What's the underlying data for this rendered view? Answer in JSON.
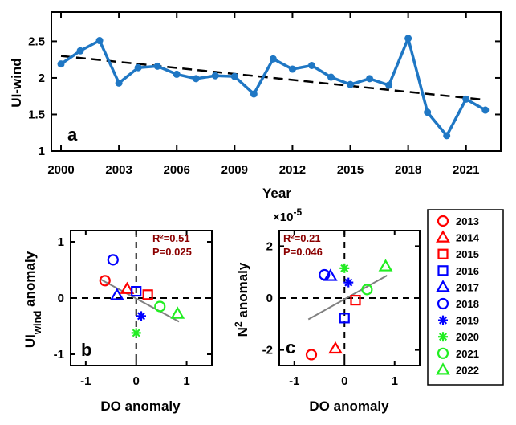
{
  "chart_data": [
    {
      "id": "a",
      "type": "line",
      "panel_label": "a",
      "xlabel": "Year",
      "ylabel": "UI-wind",
      "xlim": [
        1999.5,
        2022.8
      ],
      "ylim": [
        1,
        2.9
      ],
      "xticks": [
        2000,
        2003,
        2006,
        2009,
        2012,
        2015,
        2018,
        2021
      ],
      "xtick_labels": [
        "2000",
        "2003",
        "2006",
        "2009",
        "2012",
        "2015",
        "2018",
        "2021"
      ],
      "yticks": [
        1,
        1.5,
        2,
        2.5
      ],
      "ytick_labels": [
        "1",
        "1.5",
        "2",
        "2.5"
      ],
      "series": [
        {
          "name": "UI-wind",
          "color": "#1f77c4",
          "x": [
            2000,
            2001,
            2002,
            2003,
            2004,
            2005,
            2006,
            2007,
            2008,
            2009,
            2010,
            2011,
            2012,
            2013,
            2014,
            2015,
            2016,
            2017,
            2018,
            2019,
            2020,
            2021,
            2022
          ],
          "y": [
            2.19,
            2.37,
            2.51,
            1.93,
            2.14,
            2.16,
            2.05,
            1.99,
            2.03,
            2.02,
            1.78,
            2.26,
            2.12,
            2.17,
            2.01,
            1.91,
            1.99,
            1.9,
            2.54,
            1.53,
            1.21,
            1.71,
            1.56
          ]
        }
      ],
      "trend": {
        "name": "linear trend",
        "color": "#000000",
        "x": [
          2000,
          2022
        ],
        "y": [
          2.3,
          1.7
        ]
      }
    },
    {
      "id": "b",
      "type": "scatter",
      "panel_label": "b",
      "xlabel": "DO anomaly",
      "ylabel_main": "UI",
      "ylabel_sub": "wind",
      "ylabel_tail": " anomaly",
      "xlim": [
        -1.3,
        1.5
      ],
      "ylim": [
        -1.2,
        1.2
      ],
      "xticks": [
        -1,
        0,
        1
      ],
      "xtick_labels": [
        "-1",
        "0",
        "1"
      ],
      "yticks": [
        -1,
        0,
        1
      ],
      "ytick_labels": [
        "-1",
        "0",
        "1"
      ],
      "stats": [
        "R²=0.51",
        "P=0.025"
      ],
      "fit": {
        "x": [
          -0.7,
          0.85
        ],
        "y": [
          0.33,
          -0.42
        ]
      },
      "points": [
        {
          "year": "2013",
          "x": -0.62,
          "y": 0.31
        },
        {
          "year": "2014",
          "x": -0.18,
          "y": 0.16
        },
        {
          "year": "2015",
          "x": 0.23,
          "y": 0.06
        },
        {
          "year": "2016",
          "x": 0.0,
          "y": 0.12
        },
        {
          "year": "2017",
          "x": -0.38,
          "y": 0.05
        },
        {
          "year": "2018",
          "x": -0.46,
          "y": 0.68
        },
        {
          "year": "2019",
          "x": 0.1,
          "y": -0.32
        },
        {
          "year": "2020",
          "x": 0.0,
          "y": -0.62
        },
        {
          "year": "2021",
          "x": 0.47,
          "y": -0.15
        },
        {
          "year": "2022",
          "x": 0.82,
          "y": -0.28
        }
      ]
    },
    {
      "id": "c",
      "type": "scatter",
      "panel_label": "c",
      "xlabel": "DO anomaly",
      "ylabel_main": "N",
      "ylabel_sup": "2",
      "ylabel_tail": " anomaly",
      "scale_base": "×10",
      "scale_exp": "-5",
      "xlim": [
        -1.3,
        1.5
      ],
      "ylim": [
        -2.6,
        2.6
      ],
      "xticks": [
        -1,
        0,
        1
      ],
      "xtick_labels": [
        "-1",
        "0",
        "1"
      ],
      "yticks": [
        -2,
        0,
        2
      ],
      "ytick_labels": [
        "-2",
        "0",
        "2"
      ],
      "stats": [
        "R²=0.21",
        "P=0.046"
      ],
      "fit": {
        "x": [
          -0.72,
          0.85
        ],
        "y": [
          -0.82,
          0.87
        ]
      },
      "points": [
        {
          "year": "2013",
          "x": -0.66,
          "y": -2.18
        },
        {
          "year": "2014",
          "x": -0.18,
          "y": -1.95
        },
        {
          "year": "2015",
          "x": 0.22,
          "y": -0.08
        },
        {
          "year": "2016",
          "x": 0.0,
          "y": -0.77
        },
        {
          "year": "2017",
          "x": -0.28,
          "y": 0.85
        },
        {
          "year": "2018",
          "x": -0.4,
          "y": 0.9
        },
        {
          "year": "2019",
          "x": 0.08,
          "y": 0.6
        },
        {
          "year": "2020",
          "x": 0.0,
          "y": 1.15
        },
        {
          "year": "2021",
          "x": 0.45,
          "y": 0.33
        },
        {
          "year": "2022",
          "x": 0.82,
          "y": 1.22
        }
      ]
    }
  ],
  "legend": [
    {
      "year": "2013",
      "marker": "circle",
      "color": "#ff0000"
    },
    {
      "year": "2014",
      "marker": "triangle",
      "color": "#ff0000"
    },
    {
      "year": "2015",
      "marker": "square",
      "color": "#ff0000"
    },
    {
      "year": "2016",
      "marker": "square",
      "color": "#0000ff"
    },
    {
      "year": "2017",
      "marker": "triangle",
      "color": "#0000ff"
    },
    {
      "year": "2018",
      "marker": "circle",
      "color": "#0000ff"
    },
    {
      "year": "2019",
      "marker": "star",
      "color": "#0000ff"
    },
    {
      "year": "2020",
      "marker": "star",
      "color": "#22ee22"
    },
    {
      "year": "2021",
      "marker": "circle",
      "color": "#22ee22"
    },
    {
      "year": "2022",
      "marker": "triangle",
      "color": "#22ee22"
    }
  ]
}
